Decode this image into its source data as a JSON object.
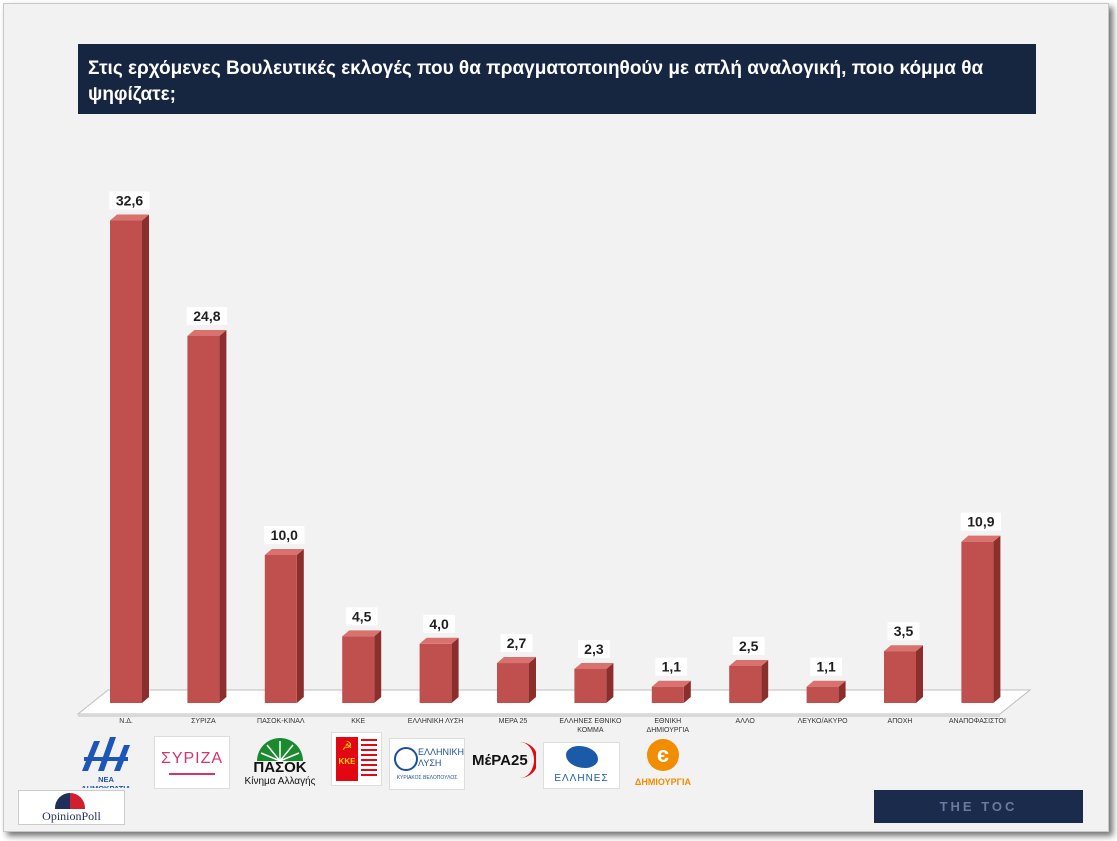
{
  "title": "Στις ερχόμενες Βουλευτικές εκλογές που θα πραγματοποιηθούν με απλή αναλογική, ποιο κόμμα θα ψηφίζατε;",
  "colors": {
    "bar_front": "#c0504d",
    "bar_side": "#8b2f2c",
    "bar_top": "#d9726f",
    "title_bg": "#162640",
    "label_text": "#1f1f1f"
  },
  "chart_data": {
    "type": "bar",
    "title": "Στις ερχόμενες Βουλευτικές εκλογές που θα πραγματοποιηθούν με απλή αναλογική, ποιο κόμμα θα ψηφίζατε;",
    "categories": [
      [
        "Ν.Δ."
      ],
      [
        "ΣΥΡΙΖΑ"
      ],
      [
        "ΠΑΣΟΚ-ΚΙΝΑΛ"
      ],
      [
        "ΚΚΕ"
      ],
      [
        "ΕΛΛΗΝΙΚΗ ΛΥΣΗ"
      ],
      [
        "ΜΕΡΑ 25"
      ],
      [
        "ΕΛΛΗΝΕΣ ΕΘΝΙΚΟ",
        "ΚΟΜΜΑ"
      ],
      [
        "ΕΘΝΙΚΗ",
        "ΔΗΜΙΟΥΡΓΙΑ"
      ],
      [
        "ΑΛΛΟ"
      ],
      [
        "ΛΕΥΚΟ/ΑΚΥΡΟ"
      ],
      [
        "ΑΠΟΧΗ"
      ],
      [
        "ΑΝΑΠΟΦΑΣΙΣΤΟΙ"
      ]
    ],
    "values": [
      32.6,
      24.8,
      10.0,
      4.5,
      4.0,
      2.7,
      2.3,
      1.1,
      2.5,
      1.1,
      3.5,
      10.9
    ],
    "value_labels": [
      "32,6",
      "24,8",
      "10,0",
      "4,5",
      "4,0",
      "2,7",
      "2,3",
      "1,1",
      "2,5",
      "1,1",
      "3,5",
      "10,9"
    ],
    "ylim": [
      0,
      35
    ],
    "grid": false,
    "legend": "none",
    "style": "3d-column"
  },
  "logos": {
    "nd": {
      "icon": "nd-logo-icon",
      "text": "ΝΕΑ ΔΗΜΟΚΡΑΤΙΑ",
      "color": "#1d56b8"
    },
    "syriza": {
      "icon": "syriza-logo-icon",
      "text": "ΣΥΡΙΖΑ",
      "color": "#d6336c"
    },
    "pasok": {
      "icon": "pasok-logo-icon",
      "text": "ΠΑΣΟΚ",
      "subtext": "Κίνημα Αλλαγής",
      "color": "#1a8a2e"
    },
    "kke": {
      "icon": "kke-logo-icon",
      "text": "ΚΚΕ",
      "color": "#e30613"
    },
    "elliniki_lysi": {
      "icon": "elliniki-lysi-logo-icon",
      "text": "ΕΛΛΗΝΙΚΗ ΛΥΣΗ",
      "subtext": "ΚΥΡΙΑΚΟΣ ΒΕΛΟΠΟΥΛΟΣ",
      "color": "#1c4f9c"
    },
    "mera25": {
      "icon": "mera25-logo-icon",
      "text": "ΜέΡΑ25",
      "color": "#e30613"
    },
    "ellines": {
      "icon": "ellines-logo-icon",
      "text": "ΕΛΛΗΝΕΣ",
      "color": "#1a5aa8"
    },
    "ethniki_dimiourgia": {
      "icon": "ethniki-dimiourgia-logo-icon",
      "text": "ΔΗΜΙΟΥΡΓΙΑ",
      "color": "#f28c00"
    },
    "opinion_poll": {
      "icon": "opinion-poll-logo-icon",
      "text": "OpinionPoll",
      "color": "#1f2f5a"
    },
    "the_toc": {
      "icon": "the-toc-logo-icon",
      "text": "THE TOC",
      "color": "#1a2b4c"
    }
  }
}
